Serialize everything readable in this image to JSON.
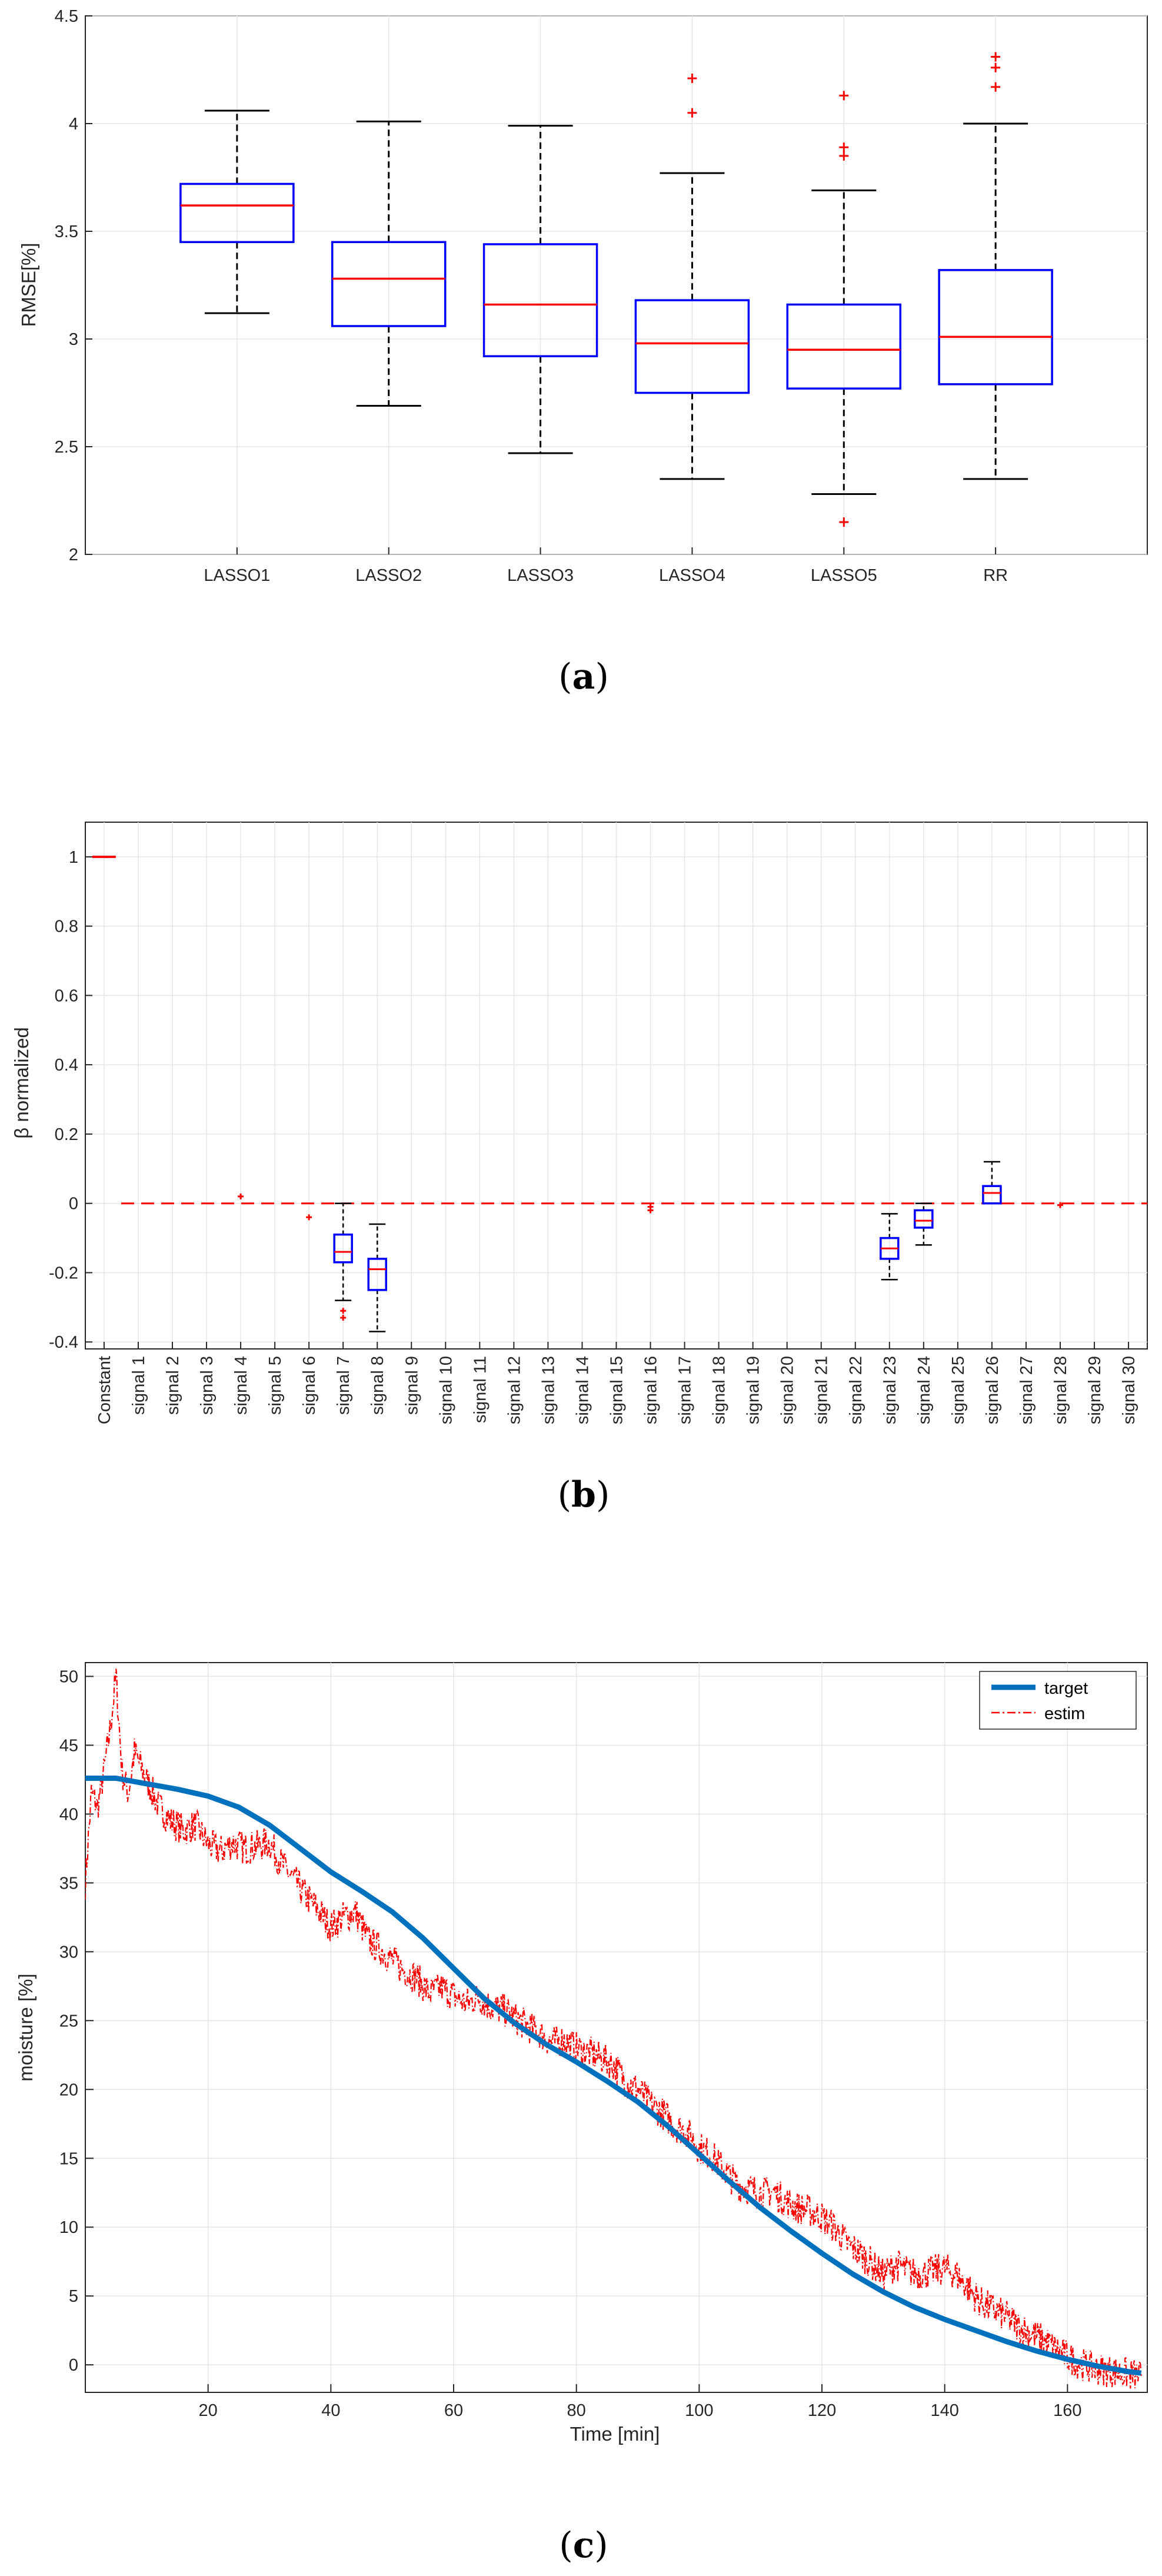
{
  "chart_data": [
    {
      "type": "box",
      "ylabel": "RMSE[%]",
      "xlabel": "",
      "ylim": [
        2,
        4.5
      ],
      "yticks": [
        2,
        2.5,
        3,
        3.5,
        4,
        4.5
      ],
      "yticklabels": [
        "2",
        "2.5",
        "3",
        "3.5",
        "4",
        "4.5"
      ],
      "grid": true,
      "caption_letter": "a",
      "categories": [
        "LASSO1",
        "LASSO2",
        "LASSO3",
        "LASSO4",
        "LASSO5",
        "RR"
      ],
      "boxes": [
        {
          "whisker_low": 3.12,
          "q1": 3.45,
          "median": 3.62,
          "q3": 3.72,
          "whisker_high": 4.06,
          "outliers": []
        },
        {
          "whisker_low": 2.69,
          "q1": 3.06,
          "median": 3.28,
          "q3": 3.45,
          "whisker_high": 4.01,
          "outliers": []
        },
        {
          "whisker_low": 2.47,
          "q1": 2.92,
          "median": 3.16,
          "q3": 3.44,
          "whisker_high": 3.99,
          "outliers": []
        },
        {
          "whisker_low": 2.35,
          "q1": 2.75,
          "median": 2.98,
          "q3": 3.18,
          "whisker_high": 3.77,
          "outliers": [
            4.05,
            4.21
          ]
        },
        {
          "whisker_low": 2.28,
          "q1": 2.77,
          "median": 2.95,
          "q3": 3.16,
          "whisker_high": 3.69,
          "outliers": [
            2.15,
            3.85,
            3.89,
            4.13
          ]
        },
        {
          "whisker_low": 2.35,
          "q1": 2.79,
          "median": 3.01,
          "q3": 3.32,
          "whisker_high": 4.0,
          "outliers": [
            4.17,
            4.26,
            4.31
          ]
        }
      ]
    },
    {
      "type": "box",
      "ylabel": "β normalized",
      "xlabel": "",
      "ylim": [
        -0.42,
        1.1
      ],
      "yticks": [
        -0.4,
        -0.2,
        0,
        0.2,
        0.4,
        0.6,
        0.8,
        1
      ],
      "yticklabels": [
        "-0.4",
        "-0.2",
        "0",
        "0.2",
        "0.4",
        "0.6",
        "0.8",
        "1"
      ],
      "grid": true,
      "caption_letter": "b",
      "zero_reference_line": 0,
      "categories": [
        "Constant",
        "signal 1",
        "signal 2",
        "signal 3",
        "signal 4",
        "signal 5",
        "signal 6",
        "signal 7",
        "signal 8",
        "signal 9",
        "signal 10",
        "signal 11",
        "signal 12",
        "signal 13",
        "signal 14",
        "signal 15",
        "signal 16",
        "signal 17",
        "signal 18",
        "signal 19",
        "signal 20",
        "signal 21",
        "signal 22",
        "signal 23",
        "signal 24",
        "signal 25",
        "signal 26",
        "signal 27",
        "signal 28",
        "signal 29",
        "signal 30"
      ],
      "boxes": [
        {
          "label": "Constant",
          "median": 1.0,
          "q1": 1.0,
          "q3": 1.0,
          "whisker_low": 1.0,
          "whisker_high": 1.0,
          "outliers": []
        },
        {
          "label": "signal 4",
          "median": 0,
          "q1": 0,
          "q3": 0,
          "whisker_low": 0,
          "whisker_high": 0,
          "outliers": [
            0.02
          ]
        },
        {
          "label": "signal 6",
          "median": 0,
          "q1": 0,
          "q3": 0,
          "whisker_low": 0,
          "whisker_high": 0,
          "outliers": [
            -0.04
          ]
        },
        {
          "label": "signal 7",
          "median": -0.14,
          "q1": -0.17,
          "q3": -0.09,
          "whisker_low": -0.28,
          "whisker_high": 0.0,
          "outliers": [
            -0.31,
            -0.33
          ]
        },
        {
          "label": "signal 8",
          "median": -0.19,
          "q1": -0.25,
          "q3": -0.16,
          "whisker_low": -0.37,
          "whisker_high": -0.06,
          "outliers": []
        },
        {
          "label": "signal 16",
          "median": 0,
          "q1": 0,
          "q3": 0,
          "whisker_low": 0,
          "whisker_high": 0,
          "outliers": [
            -0.01,
            -0.02
          ]
        },
        {
          "label": "signal 23",
          "median": -0.13,
          "q1": -0.16,
          "q3": -0.1,
          "whisker_low": -0.22,
          "whisker_high": -0.03,
          "outliers": []
        },
        {
          "label": "signal 24",
          "median": -0.05,
          "q1": -0.07,
          "q3": -0.02,
          "whisker_low": -0.12,
          "whisker_high": 0.0,
          "outliers": []
        },
        {
          "label": "signal 26",
          "median": 0.03,
          "q1": 0.0,
          "q3": 0.05,
          "whisker_low": 0.0,
          "whisker_high": 0.12,
          "outliers": []
        },
        {
          "label": "signal 28",
          "median": 0,
          "q1": 0,
          "q3": 0,
          "whisker_low": 0,
          "whisker_high": 0,
          "outliers": [
            -0.005
          ]
        }
      ]
    },
    {
      "type": "line",
      "xlabel": "Time [min]",
      "ylabel": "moisture [%]",
      "xlim": [
        0,
        173
      ],
      "ylim": [
        -2,
        51
      ],
      "xticks": [
        20,
        40,
        60,
        80,
        100,
        120,
        140,
        160
      ],
      "xticklabels": [
        "20",
        "40",
        "60",
        "80",
        "100",
        "120",
        "140",
        "160"
      ],
      "yticks": [
        0,
        5,
        10,
        15,
        20,
        25,
        30,
        35,
        40,
        45,
        50
      ],
      "yticklabels": [
        "0",
        "5",
        "10",
        "15",
        "20",
        "25",
        "30",
        "35",
        "40",
        "45",
        "50"
      ],
      "grid": true,
      "legend_position": "top-right",
      "caption_letter": "c",
      "series": [
        {
          "name": "target",
          "color": "#0072BD",
          "style": "solid",
          "x": [
            0,
            5,
            10,
            15,
            20,
            25,
            30,
            35,
            40,
            45,
            50,
            55,
            60,
            65,
            70,
            75,
            80,
            85,
            90,
            95,
            100,
            105,
            110,
            115,
            120,
            125,
            130,
            135,
            140,
            145,
            150,
            155,
            160,
            165,
            170,
            172
          ],
          "y": [
            42.6,
            42.6,
            42.2,
            41.8,
            41.3,
            40.5,
            39.2,
            37.5,
            35.8,
            34.4,
            32.9,
            31.0,
            28.8,
            26.6,
            24.8,
            23.3,
            22.0,
            20.6,
            19.1,
            17.3,
            15.3,
            13.3,
            11.4,
            9.7,
            8.1,
            6.6,
            5.3,
            4.2,
            3.3,
            2.5,
            1.7,
            1.0,
            0.4,
            -0.1,
            -0.5,
            -0.6
          ]
        },
        {
          "name": "estim",
          "color": "#ff0000",
          "style": "dashdot",
          "x": [
            0,
            1,
            2,
            3,
            4,
            5,
            6,
            7,
            8,
            9,
            10,
            12,
            14,
            16,
            18,
            20,
            22,
            24,
            26,
            28,
            30,
            32,
            34,
            36,
            38,
            40,
            42,
            44,
            46,
            48,
            50,
            52,
            54,
            56,
            58,
            60,
            62,
            64,
            66,
            68,
            70,
            72,
            74,
            76,
            78,
            80,
            82,
            84,
            86,
            88,
            90,
            92,
            94,
            96,
            98,
            100,
            102,
            104,
            106,
            108,
            110,
            112,
            114,
            116,
            118,
            120,
            122,
            124,
            126,
            128,
            130,
            132,
            134,
            136,
            138,
            140,
            142,
            144,
            146,
            148,
            150,
            152,
            154,
            156,
            158,
            160,
            162,
            164,
            166,
            168,
            170,
            172
          ],
          "y": [
            35,
            41.5,
            40.5,
            43,
            46,
            50,
            43,
            41.5,
            44.5,
            43.5,
            42.5,
            40.5,
            39.5,
            38.8,
            39.2,
            37.8,
            37.3,
            37.9,
            37.5,
            37.7,
            37.9,
            36.4,
            35.2,
            34.0,
            33.0,
            31.8,
            32.5,
            32.9,
            30.9,
            30.2,
            29.4,
            28.6,
            28.1,
            27.0,
            27.4,
            26.8,
            26.2,
            26.7,
            26.0,
            25.8,
            25.2,
            24.6,
            24.1,
            23.4,
            23.6,
            23.0,
            22.7,
            22.3,
            21.8,
            20.6,
            20.0,
            19.0,
            18.3,
            17.4,
            16.9,
            15.8,
            15.2,
            14.2,
            13.2,
            12.8,
            12.5,
            12.6,
            11.9,
            11.4,
            11.2,
            10.7,
            10.0,
            8.8,
            8.2,
            7.4,
            6.5,
            7.3,
            6.8,
            6.6,
            6.8,
            7.0,
            6.5,
            5.5,
            4.5,
            4.0,
            3.5,
            2.8,
            2.3,
            1.8,
            1.2,
            0.6,
            0.1,
            -0.2,
            -0.4,
            -0.5,
            -0.7,
            -0.8
          ]
        }
      ]
    }
  ]
}
